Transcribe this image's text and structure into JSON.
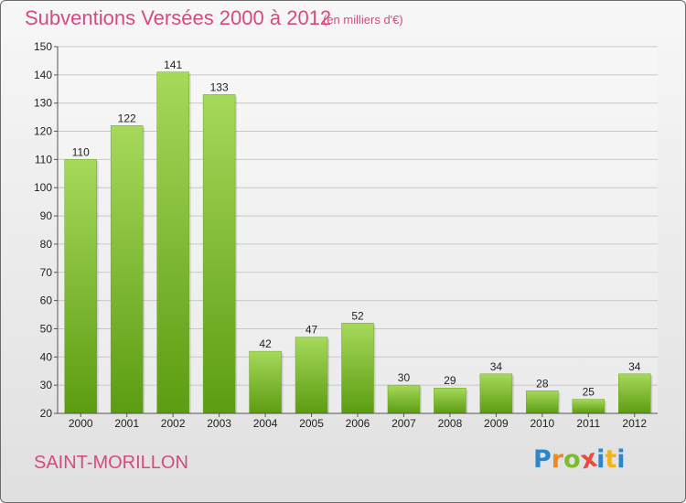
{
  "header": {
    "title": "Subventions Versées 2000 à 2012",
    "subtitle": "(en milliers d'€)"
  },
  "footer": {
    "place": "SAINT-MORILLON",
    "logo_text": "Proxiti"
  },
  "colors": {
    "title": "#d64a82",
    "bar_light": "#a6d95a",
    "bar_dark": "#5c9c12",
    "grid": "#c8c8c8",
    "axis": "#555555"
  },
  "chart_data": {
    "type": "bar",
    "title": "Subventions Versées 2000 à 2012",
    "subtitle": "(en milliers d'€)",
    "categories": [
      "2000",
      "2001",
      "2002",
      "2003",
      "2004",
      "2005",
      "2006",
      "2007",
      "2008",
      "2009",
      "2010",
      "2011",
      "2012"
    ],
    "values": [
      110,
      122,
      141,
      133,
      42,
      47,
      52,
      30,
      29,
      34,
      28,
      25,
      34
    ],
    "ylim": [
      20,
      150
    ],
    "yticks": [
      20,
      30,
      40,
      50,
      60,
      70,
      80,
      90,
      100,
      110,
      120,
      130,
      140,
      150
    ],
    "grid": true,
    "legend": "none"
  }
}
